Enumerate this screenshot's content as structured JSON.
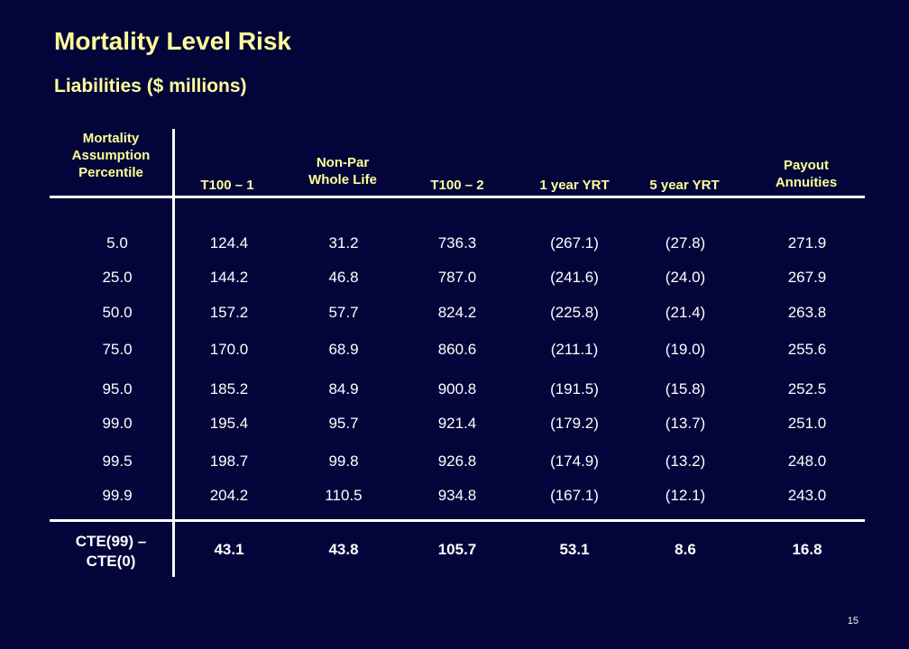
{
  "slide": {
    "title": "Mortality Level Risk",
    "subtitle": "Liabilities ($ millions)",
    "page_number": "15"
  },
  "table": {
    "headers": [
      [
        "Mortality",
        "Assumption",
        "Percentile"
      ],
      [
        "T100 – 1"
      ],
      [
        "Non-Par",
        "Whole Life"
      ],
      [
        "T100 – 2"
      ],
      [
        "1 year YRT"
      ],
      [
        "5 year YRT"
      ],
      [
        "Payout",
        "Annuities"
      ]
    ],
    "rows": [
      [
        "5.0",
        "124.4",
        "31.2",
        "736.3",
        "(267.1)",
        "(27.8)",
        "271.9"
      ],
      [
        "25.0",
        "144.2",
        "46.8",
        "787.0",
        "(241.6)",
        "(24.0)",
        "267.9"
      ],
      [
        "50.0",
        "157.2",
        "57.7",
        "824.2",
        "(225.8)",
        "(21.4)",
        "263.8"
      ],
      [
        "75.0",
        "170.0",
        "68.9",
        "860.6",
        "(211.1)",
        "(19.0)",
        "255.6"
      ],
      [
        "95.0",
        "185.2",
        "84.9",
        "900.8",
        "(191.5)",
        "(15.8)",
        "252.5"
      ],
      [
        "99.0",
        "195.4",
        "95.7",
        "921.4",
        "(179.2)",
        "(13.7)",
        "251.0"
      ],
      [
        "99.5",
        "198.7",
        "99.8",
        "926.8",
        "(174.9)",
        "(13.2)",
        "248.0"
      ],
      [
        "99.9",
        "204.2",
        "110.5",
        "934.8",
        "(167.1)",
        "(12.1)",
        "243.0"
      ]
    ],
    "footer": {
      "label_lines": [
        "CTE(99) –",
        "CTE(0)"
      ],
      "values": [
        "43.1",
        "43.8",
        "105.7",
        "53.1",
        "8.6",
        "16.8"
      ]
    }
  },
  "colors": {
    "background": "#03043a",
    "title": "#ffff99",
    "header": "#ffff99",
    "text": "#ffffff",
    "rule": "#ffffff"
  }
}
